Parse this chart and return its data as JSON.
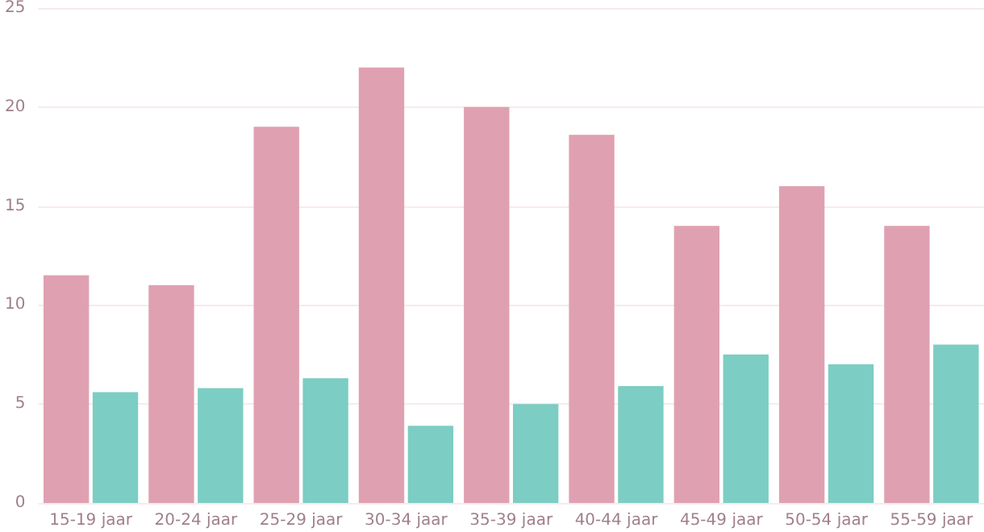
{
  "chart_data": {
    "type": "bar",
    "categories": [
      "15-19 jaar",
      "20-24 jaar",
      "25-29 jaar",
      "30-34 jaar",
      "35-39 jaar",
      "40-44 jaar",
      "45-49 jaar",
      "50-54 jaar",
      "55-59 jaar"
    ],
    "series": [
      {
        "color": "#dfa1b2",
        "values": [
          11.5,
          11.0,
          19.0,
          22.0,
          20.0,
          18.6,
          14.0,
          16.0,
          14.0
        ]
      },
      {
        "color": "#7ccdc3",
        "values": [
          5.6,
          5.8,
          6.3,
          3.9,
          5.0,
          5.9,
          7.5,
          7.0,
          8.0
        ]
      }
    ],
    "ylim": [
      0,
      25
    ],
    "yticks": [
      0,
      5,
      10,
      15,
      20,
      25
    ],
    "grid": "y"
  }
}
